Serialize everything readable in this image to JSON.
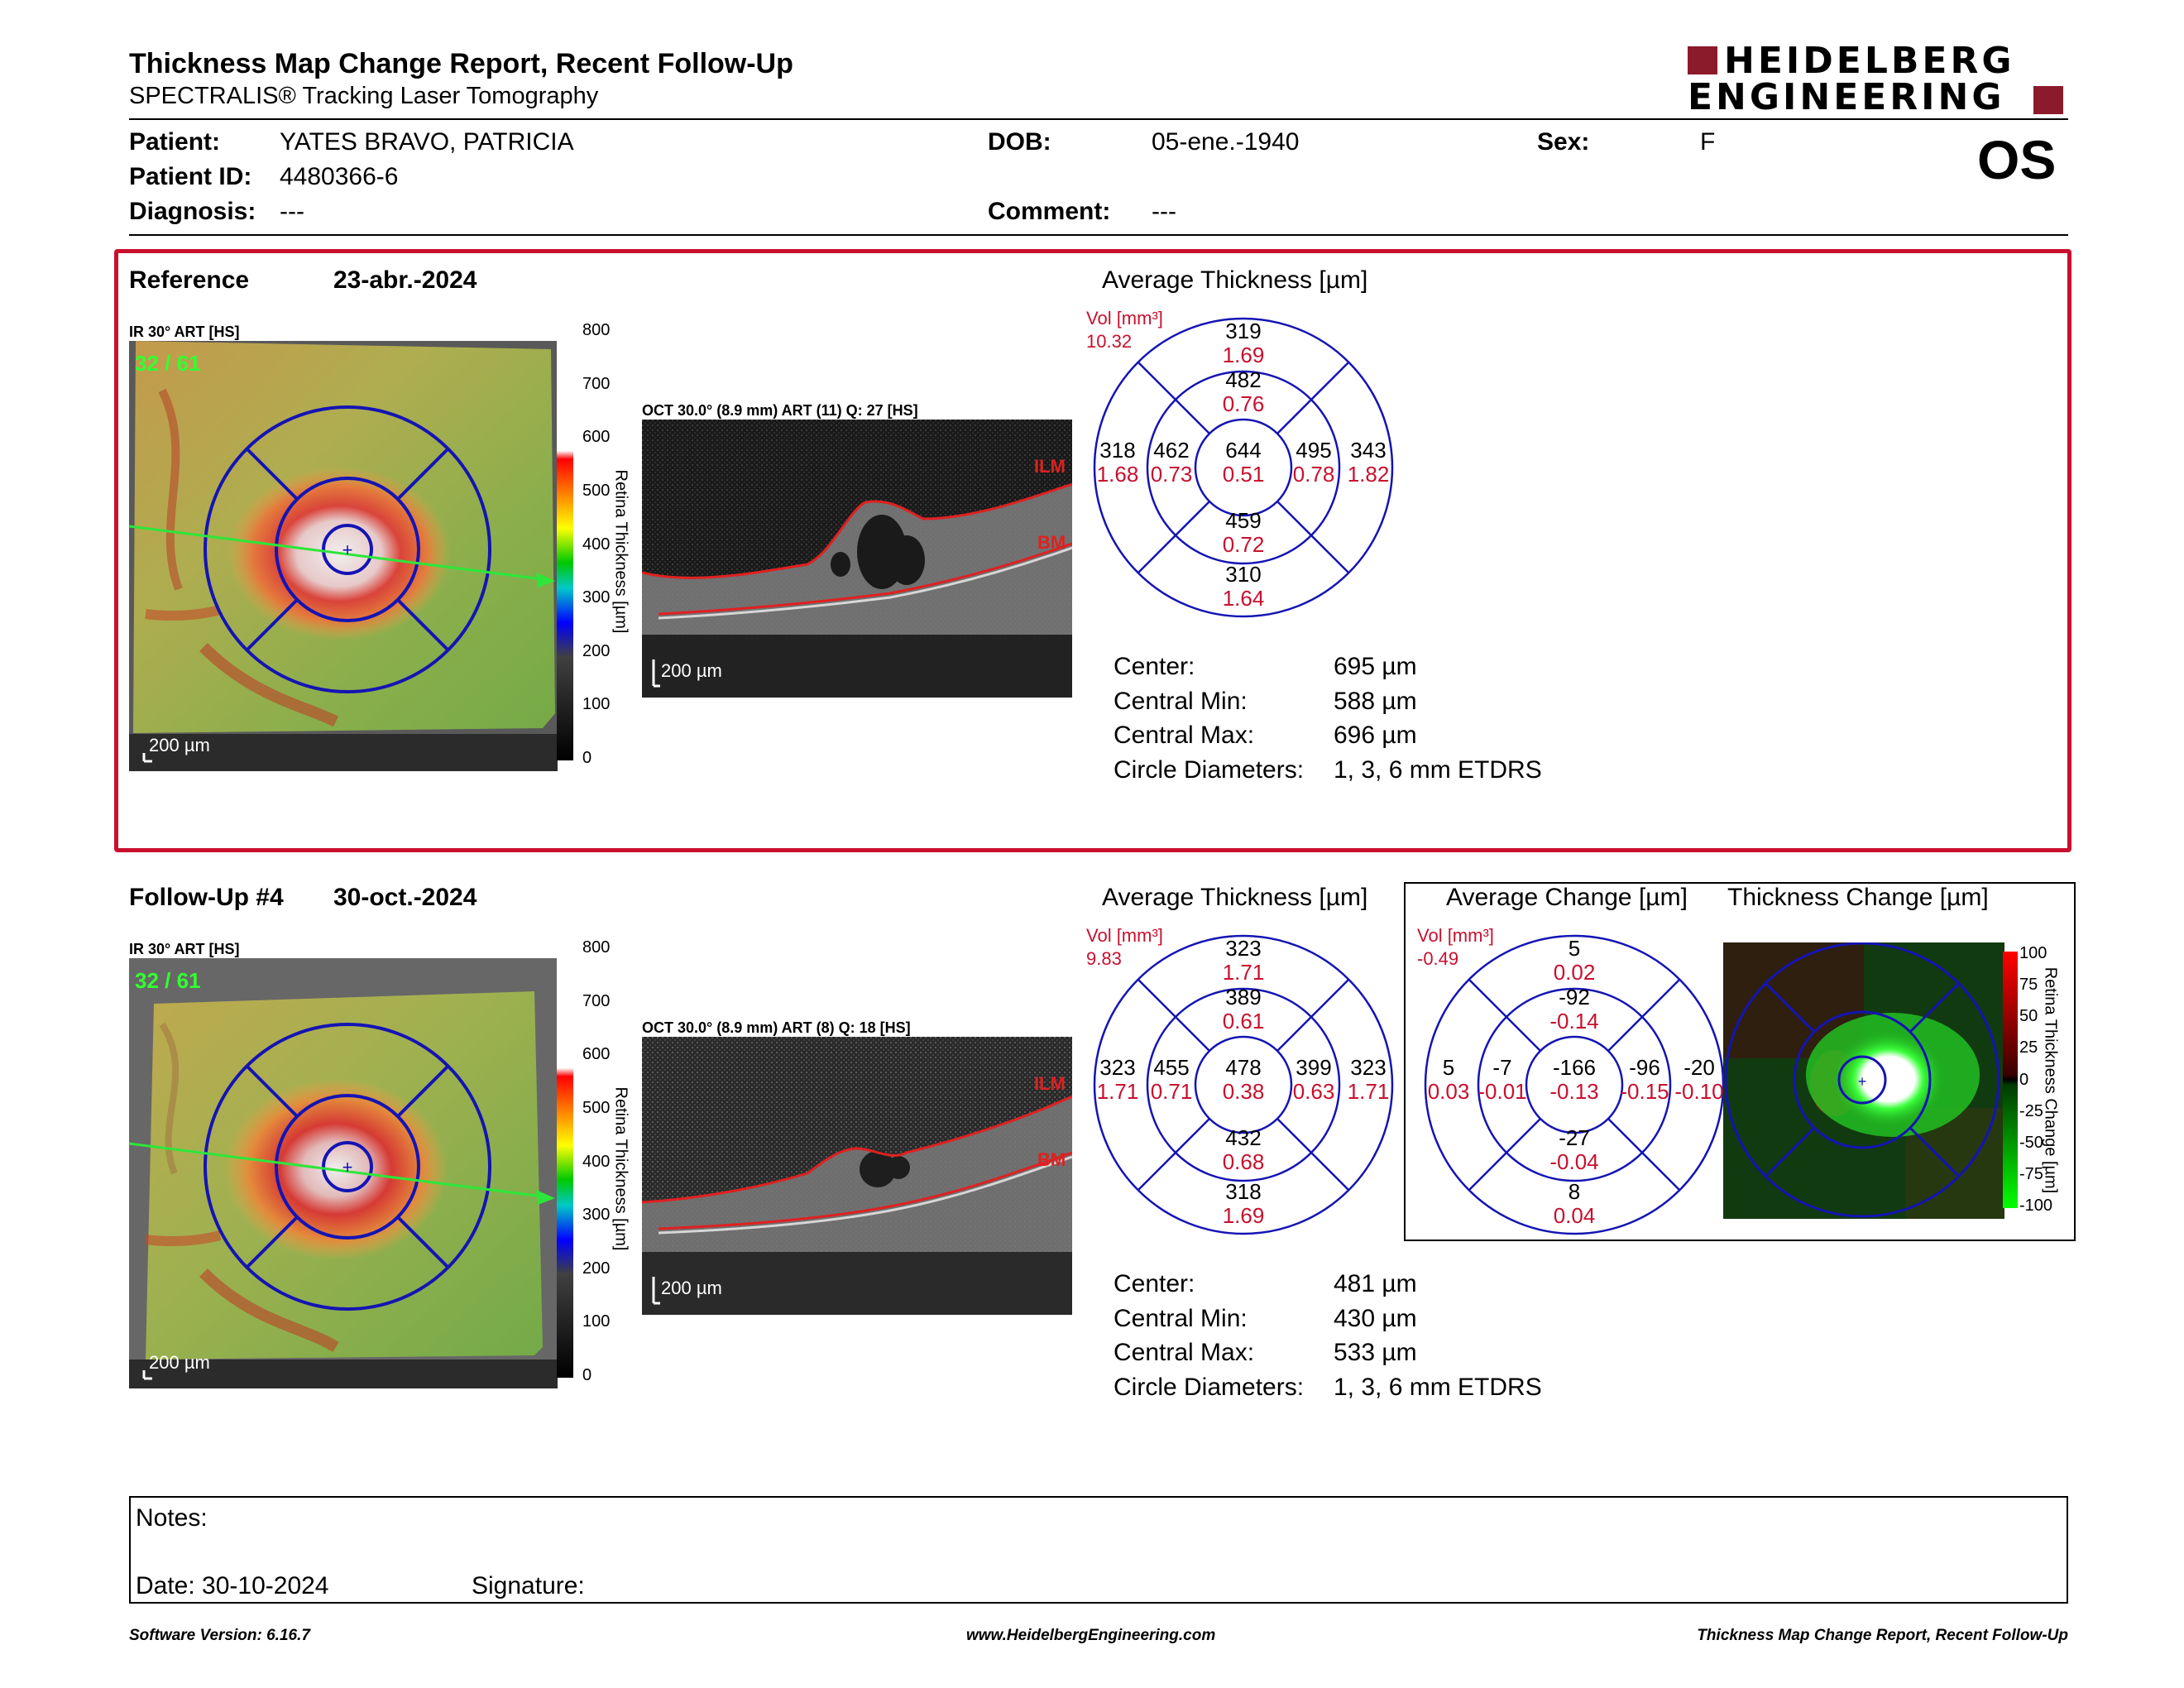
{
  "header": {
    "title": "Thickness Map Change Report, Recent Follow-Up",
    "subtitle": "SPECTRALIS® Tracking Laser Tomography",
    "brand_line1": "HEIDELBERG",
    "brand_line2": "ENGINEERING",
    "eye": "OS",
    "brand_color": "#8b1a2b"
  },
  "patient": {
    "patient_label": "Patient:",
    "patient_value": "YATES BRAVO, PATRICIA",
    "id_label": "Patient ID:",
    "id_value": "4480366-6",
    "diagnosis_label": "Diagnosis:",
    "diagnosis_value": "---",
    "dob_label": "DOB:",
    "dob_value": "05-ene.-1940",
    "comment_label": "Comment:",
    "comment_value": "---",
    "sex_label": "Sex:",
    "sex_value": "F"
  },
  "reference": {
    "label": "Reference",
    "date": "23-abr.-2024",
    "ir_label": "IR 30° ART [HS]",
    "ir_counter": "32 / 61",
    "scale_label": "200 µm",
    "oct_label": "OCT 30.0° (8.9 mm) ART (11) Q: 27 [HS]",
    "oct_scale": "200 µm",
    "ilm": "ILM",
    "bm": "BM",
    "colorbar_ticks": [
      "800",
      "700",
      "600",
      "500",
      "400",
      "300",
      "200",
      "100",
      "0"
    ],
    "colorbar_title": "Retina Thickness [µm]",
    "avg_title": "Average Thickness [µm]",
    "vol_label": "Vol [mm³]",
    "vol_total": "10.32",
    "etdrs": {
      "top_outer": [
        "319",
        "1.69"
      ],
      "top_inner": [
        "482",
        "0.76"
      ],
      "left_outer": [
        "318",
        "1.68"
      ],
      "left_inner": [
        "462",
        "0.73"
      ],
      "center": [
        "644",
        "0.51"
      ],
      "right_inner": [
        "495",
        "0.78"
      ],
      "right_outer": [
        "343",
        "1.82"
      ],
      "bottom_inner": [
        "459",
        "0.72"
      ],
      "bottom_outer": [
        "310",
        "1.64"
      ]
    },
    "stats": [
      {
        "label": "Center:",
        "value": "695 µm"
      },
      {
        "label": "Central Min:",
        "value": "588 µm"
      },
      {
        "label": "Central Max:",
        "value": "696 µm"
      },
      {
        "label": "Circle Diameters:",
        "value": "1, 3, 6 mm ETDRS"
      }
    ],
    "border_color": "#c8102e"
  },
  "followup": {
    "label": "Follow-Up #4",
    "date": "30-oct.-2024",
    "ir_label": "IR 30° ART [HS]",
    "ir_counter": "32 / 61",
    "scale_label": "200 µm",
    "oct_label": "OCT 30.0° (8.9 mm) ART (8) Q: 18 [HS]",
    "oct_scale": "200 µm",
    "ilm": "ILM",
    "bm": "BM",
    "colorbar_ticks": [
      "800",
      "700",
      "600",
      "500",
      "400",
      "300",
      "200",
      "100",
      "0"
    ],
    "colorbar_title": "Retina Thickness [µm]",
    "avg_title": "Average Thickness [µm]",
    "vol_label": "Vol [mm³]",
    "vol_total": "9.83",
    "etdrs": {
      "top_outer": [
        "323",
        "1.71"
      ],
      "top_inner": [
        "389",
        "0.61"
      ],
      "left_outer": [
        "323",
        "1.71"
      ],
      "left_inner": [
        "455",
        "0.71"
      ],
      "center": [
        "478",
        "0.38"
      ],
      "right_inner": [
        "399",
        "0.63"
      ],
      "right_outer": [
        "323",
        "1.71"
      ],
      "bottom_inner": [
        "432",
        "0.68"
      ],
      "bottom_outer": [
        "318",
        "1.69"
      ]
    },
    "stats": [
      {
        "label": "Center:",
        "value": "481 µm"
      },
      {
        "label": "Central Min:",
        "value": "430 µm"
      },
      {
        "label": "Central Max:",
        "value": "533 µm"
      },
      {
        "label": "Circle Diameters:",
        "value": "1, 3, 6 mm ETDRS"
      }
    ]
  },
  "change": {
    "avg_title": "Average Change [µm]",
    "map_title": "Thickness Change [µm]",
    "vol_label": "Vol [mm³]",
    "vol_total": "-0.49",
    "etdrs": {
      "top_outer": [
        "5",
        "0.02"
      ],
      "top_inner": [
        "-92",
        "-0.14"
      ],
      "left_outer": [
        "5",
        "0.03"
      ],
      "left_inner": [
        "-7",
        "-0.01"
      ],
      "center": [
        "-166",
        "-0.13"
      ],
      "right_inner": [
        "-96",
        "-0.15"
      ],
      "right_outer": [
        "-20",
        "-0.10"
      ],
      "bottom_inner": [
        "-27",
        "-0.04"
      ],
      "bottom_outer": [
        "8",
        "0.04"
      ]
    },
    "colorbar_ticks": [
      "100",
      "75",
      "50",
      "25",
      "0",
      "-25",
      "-50",
      "-75",
      "-100"
    ],
    "colorbar_title": "Retina Thickness Change [µm]"
  },
  "notes": {
    "notes_label": "Notes:",
    "date_label": "Date: 30-10-2024",
    "signature_label": "Signature:"
  },
  "footer": {
    "version": "Software Version: 6.16.7",
    "url": "www.HeidelbergEngineering.com",
    "report_name": "Thickness Map Change Report, Recent Follow-Up"
  }
}
